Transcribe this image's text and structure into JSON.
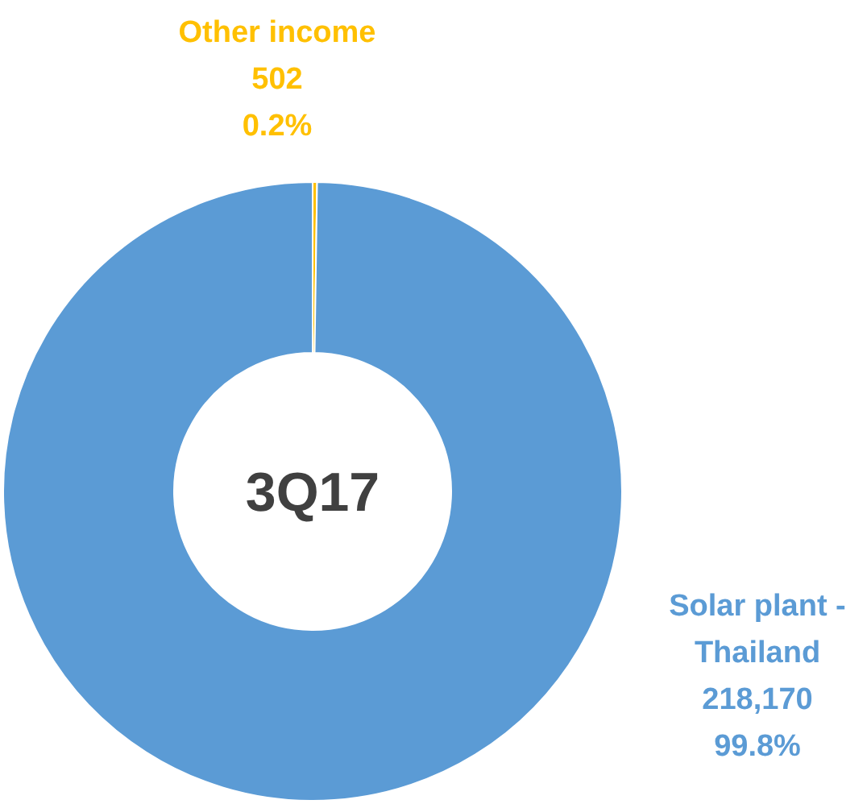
{
  "chart_data": {
    "type": "donut",
    "title": "3Q17",
    "categories": [
      "Other income",
      "Solar plant - Thailand"
    ],
    "values": [
      502,
      218170
    ],
    "colors": [
      "#ffc000",
      "#5b9bd5"
    ],
    "value_labels": [
      "502\n0.2%",
      "218,170\n99.8%"
    ]
  }
}
